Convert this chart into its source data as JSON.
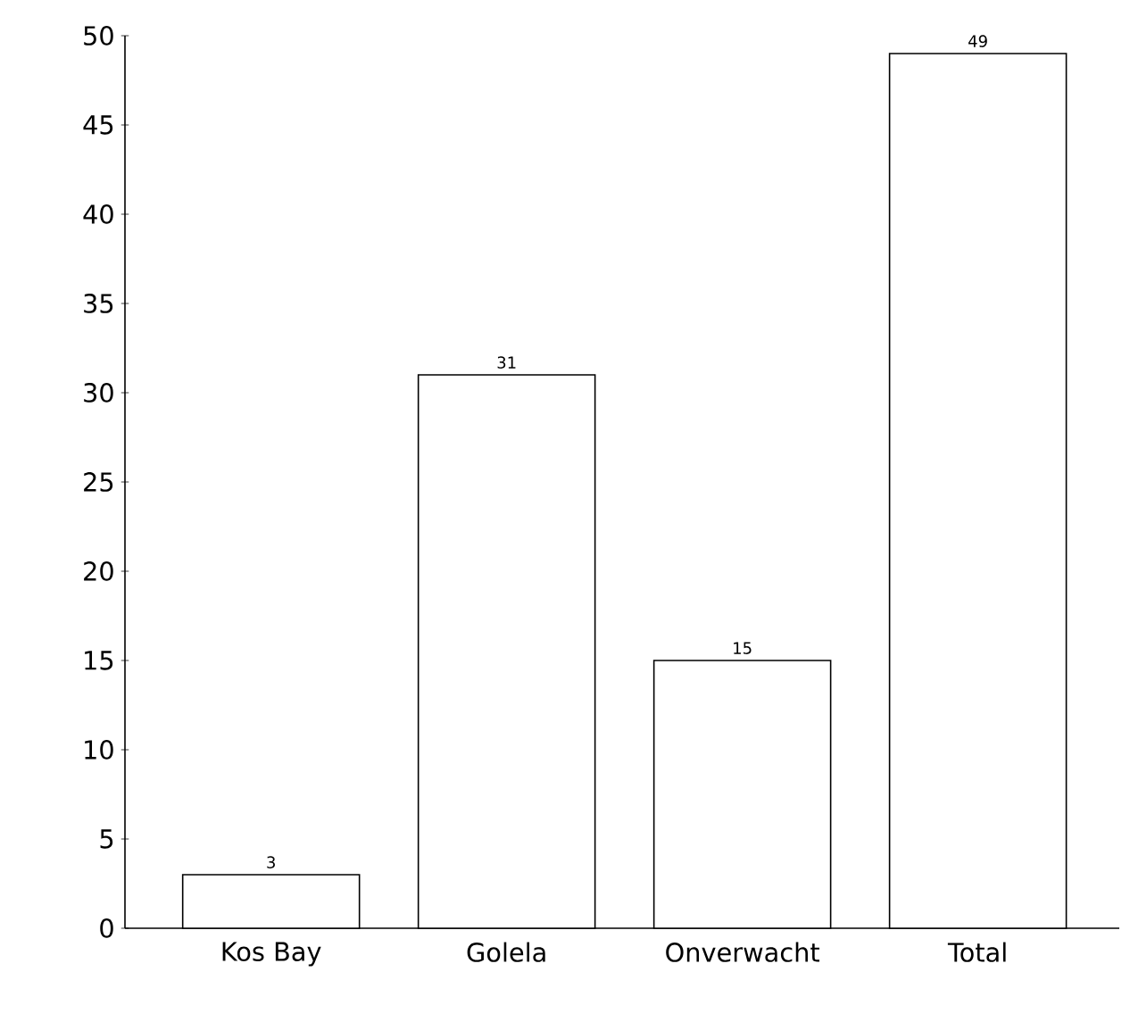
{
  "chart_data": {
    "type": "bar",
    "categories": [
      "Kos Bay",
      "Golela",
      "Onverwacht",
      "Total"
    ],
    "values": [
      3,
      31,
      15,
      49
    ],
    "color": "#ffffff",
    "ylim": [
      0,
      50
    ],
    "yticks": [
      0,
      5,
      10,
      15,
      20,
      25,
      30,
      35,
      40,
      45,
      50
    ],
    "data_labels": true
  }
}
